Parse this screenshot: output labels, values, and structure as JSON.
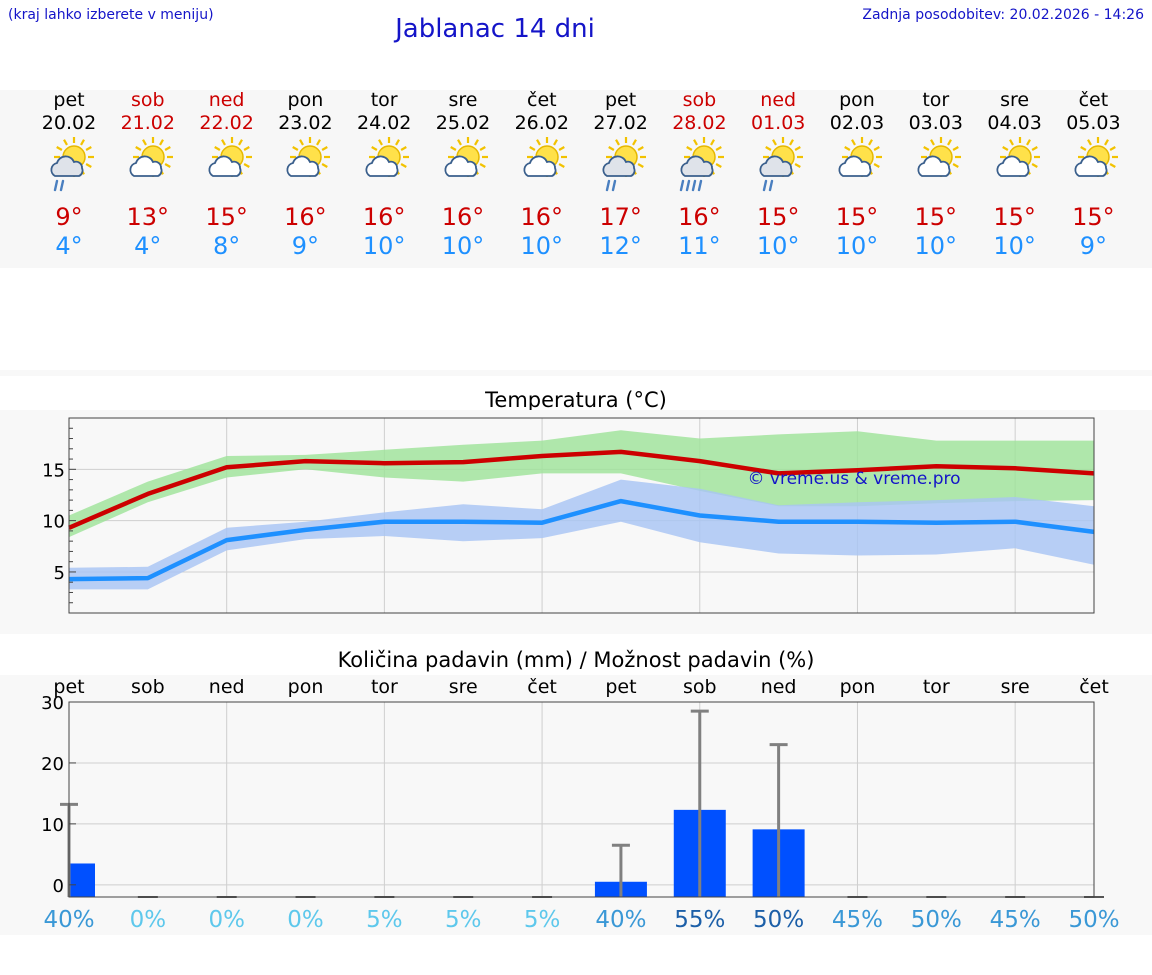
{
  "header": {
    "note_left": "(kraj lahko izberete v meniju)",
    "title": "Jablanac 14 dni",
    "updated": "Zadnja posodobitev: 20.02.2026 - 14:26"
  },
  "colors": {
    "max": "#cc0000",
    "min": "#1e90ff",
    "weekend": "#cc0000",
    "max_band": "#9fe39a",
    "min_band": "#a8c4f4",
    "bar": "#0050ff",
    "error": "#808080"
  },
  "days": [
    {
      "name": "pet",
      "date": "20.02",
      "weekend": false,
      "icon": "sun-cloud-rain-icon",
      "max": "9°",
      "min": "4°"
    },
    {
      "name": "sob",
      "date": "21.02",
      "weekend": true,
      "icon": "sun-cloud-icon",
      "max": "13°",
      "min": "4°"
    },
    {
      "name": "ned",
      "date": "22.02",
      "weekend": true,
      "icon": "sun-cloud-icon",
      "max": "15°",
      "min": "8°"
    },
    {
      "name": "pon",
      "date": "23.02",
      "weekend": false,
      "icon": "sun-cloud-icon",
      "max": "16°",
      "min": "9°"
    },
    {
      "name": "tor",
      "date": "24.02",
      "weekend": false,
      "icon": "sun-cloud-icon",
      "max": "16°",
      "min": "10°"
    },
    {
      "name": "sre",
      "date": "25.02",
      "weekend": false,
      "icon": "sun-cloud-icon",
      "max": "16°",
      "min": "10°"
    },
    {
      "name": "čet",
      "date": "26.02",
      "weekend": false,
      "icon": "sun-cloud-icon",
      "max": "16°",
      "min": "10°"
    },
    {
      "name": "pet",
      "date": "27.02",
      "weekend": false,
      "icon": "sun-cloud-rain-icon",
      "max": "17°",
      "min": "12°"
    },
    {
      "name": "sob",
      "date": "28.02",
      "weekend": true,
      "icon": "sun-cloud-heavy-rain-icon",
      "max": "16°",
      "min": "11°"
    },
    {
      "name": "ned",
      "date": "01.03",
      "weekend": true,
      "icon": "sun-cloud-rain-icon",
      "max": "15°",
      "min": "10°"
    },
    {
      "name": "pon",
      "date": "02.03",
      "weekend": false,
      "icon": "sun-cloud-icon",
      "max": "15°",
      "min": "10°"
    },
    {
      "name": "tor",
      "date": "03.03",
      "weekend": false,
      "icon": "sun-cloud-icon",
      "max": "15°",
      "min": "10°"
    },
    {
      "name": "sre",
      "date": "04.03",
      "weekend": false,
      "icon": "sun-cloud-icon",
      "max": "15°",
      "min": "10°"
    },
    {
      "name": "čet",
      "date": "05.03",
      "weekend": false,
      "icon": "sun-cloud-icon",
      "max": "15°",
      "min": "9°"
    }
  ],
  "chart_data": [
    {
      "type": "line",
      "title": "Temperatura (°C)",
      "watermark": "© vreme.us & vreme.pro",
      "x": [
        0,
        1,
        2,
        3,
        4,
        5,
        6,
        7,
        8,
        9,
        10,
        11,
        12,
        13
      ],
      "ylim": [
        1,
        20
      ],
      "yticks": [
        5,
        10,
        15
      ],
      "series": [
        {
          "name": "max",
          "values": [
            9.3,
            12.6,
            15.2,
            15.8,
            15.6,
            15.7,
            16.3,
            16.7,
            15.8,
            14.6,
            14.9,
            15.3,
            15.1,
            14.6
          ],
          "band_low": [
            8.4,
            11.8,
            14.2,
            15.0,
            14.2,
            13.8,
            14.6,
            14.6,
            12.9,
            11.4,
            11.4,
            11.7,
            11.9,
            12.0
          ],
          "band_high": [
            10.5,
            13.8,
            16.3,
            16.4,
            16.9,
            17.4,
            17.8,
            18.8,
            18.0,
            18.4,
            18.7,
            17.8,
            17.8,
            17.8
          ]
        },
        {
          "name": "min",
          "values": [
            4.3,
            4.4,
            8.1,
            9.1,
            9.9,
            9.9,
            9.8,
            11.9,
            10.5,
            9.9,
            9.9,
            9.8,
            9.9,
            8.9
          ],
          "band_low": [
            3.3,
            3.3,
            7.1,
            8.2,
            8.5,
            8.0,
            8.3,
            9.9,
            7.9,
            6.8,
            6.6,
            6.7,
            7.3,
            5.7
          ],
          "band_high": [
            5.4,
            5.5,
            9.3,
            9.9,
            10.8,
            11.6,
            11.1,
            14.0,
            13.1,
            11.5,
            11.8,
            12.0,
            12.3,
            11.4
          ]
        }
      ]
    },
    {
      "type": "bar",
      "title": "Količina padavin (mm) / Možnost padavin (%)",
      "categories": [
        "pet",
        "sob",
        "ned",
        "pon",
        "tor",
        "sre",
        "čet",
        "pet",
        "sob",
        "ned",
        "pon",
        "tor",
        "sre",
        "čet"
      ],
      "values": [
        3.5,
        0,
        0,
        0,
        0,
        0,
        0,
        0.5,
        12.3,
        9.1,
        0,
        0,
        0,
        0
      ],
      "error_high": [
        13.2,
        0,
        0,
        0,
        0,
        0,
        0,
        6.5,
        28.5,
        23,
        0,
        0,
        0,
        0
      ],
      "probability": [
        "40%",
        "0%",
        "0%",
        "0%",
        "5%",
        "5%",
        "5%",
        "40%",
        "55%",
        "50%",
        "45%",
        "50%",
        "45%",
        "50%"
      ],
      "probability_colors": [
        "#3a98d6",
        "#5ec8ec",
        "#5ec8ec",
        "#5ec8ec",
        "#5ec8ec",
        "#5ec8ec",
        "#5ec8ec",
        "#3a98d6",
        "#1c5fa8",
        "#1c5fa8",
        "#3a98d6",
        "#3a98d6",
        "#3a98d6",
        "#3a98d6"
      ],
      "ylim": [
        -2,
        30
      ],
      "yticks": [
        0,
        10,
        20,
        30
      ]
    }
  ]
}
